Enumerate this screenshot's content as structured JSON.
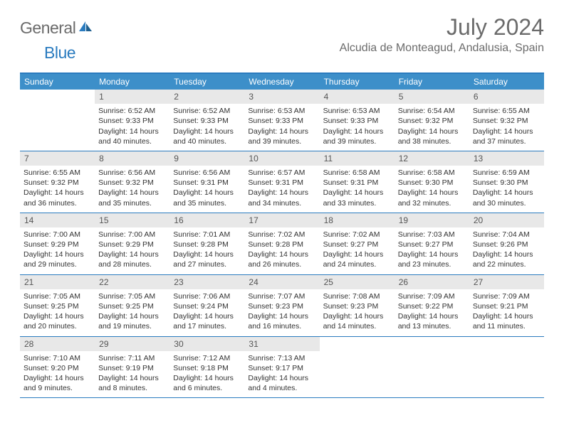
{
  "logo": {
    "text1": "General",
    "text2": "Blue"
  },
  "title": "July 2024",
  "location": "Alcudia de Monteagud, Andalusia, Spain",
  "colors": {
    "header_bg": "#3d8fc9",
    "border": "#2a7bbf",
    "daynum_bg": "#e8e8e8",
    "text": "#333333",
    "muted": "#6b6b6b"
  },
  "dow": [
    "Sunday",
    "Monday",
    "Tuesday",
    "Wednesday",
    "Thursday",
    "Friday",
    "Saturday"
  ],
  "weeks": [
    [
      {
        "n": "",
        "empty": true
      },
      {
        "n": "1",
        "sr": "Sunrise: 6:52 AM",
        "ss": "Sunset: 9:33 PM",
        "dl": "Daylight: 14 hours and 40 minutes."
      },
      {
        "n": "2",
        "sr": "Sunrise: 6:52 AM",
        "ss": "Sunset: 9:33 PM",
        "dl": "Daylight: 14 hours and 40 minutes."
      },
      {
        "n": "3",
        "sr": "Sunrise: 6:53 AM",
        "ss": "Sunset: 9:33 PM",
        "dl": "Daylight: 14 hours and 39 minutes."
      },
      {
        "n": "4",
        "sr": "Sunrise: 6:53 AM",
        "ss": "Sunset: 9:33 PM",
        "dl": "Daylight: 14 hours and 39 minutes."
      },
      {
        "n": "5",
        "sr": "Sunrise: 6:54 AM",
        "ss": "Sunset: 9:32 PM",
        "dl": "Daylight: 14 hours and 38 minutes."
      },
      {
        "n": "6",
        "sr": "Sunrise: 6:55 AM",
        "ss": "Sunset: 9:32 PM",
        "dl": "Daylight: 14 hours and 37 minutes."
      }
    ],
    [
      {
        "n": "7",
        "sr": "Sunrise: 6:55 AM",
        "ss": "Sunset: 9:32 PM",
        "dl": "Daylight: 14 hours and 36 minutes."
      },
      {
        "n": "8",
        "sr": "Sunrise: 6:56 AM",
        "ss": "Sunset: 9:32 PM",
        "dl": "Daylight: 14 hours and 35 minutes."
      },
      {
        "n": "9",
        "sr": "Sunrise: 6:56 AM",
        "ss": "Sunset: 9:31 PM",
        "dl": "Daylight: 14 hours and 35 minutes."
      },
      {
        "n": "10",
        "sr": "Sunrise: 6:57 AM",
        "ss": "Sunset: 9:31 PM",
        "dl": "Daylight: 14 hours and 34 minutes."
      },
      {
        "n": "11",
        "sr": "Sunrise: 6:58 AM",
        "ss": "Sunset: 9:31 PM",
        "dl": "Daylight: 14 hours and 33 minutes."
      },
      {
        "n": "12",
        "sr": "Sunrise: 6:58 AM",
        "ss": "Sunset: 9:30 PM",
        "dl": "Daylight: 14 hours and 32 minutes."
      },
      {
        "n": "13",
        "sr": "Sunrise: 6:59 AM",
        "ss": "Sunset: 9:30 PM",
        "dl": "Daylight: 14 hours and 30 minutes."
      }
    ],
    [
      {
        "n": "14",
        "sr": "Sunrise: 7:00 AM",
        "ss": "Sunset: 9:29 PM",
        "dl": "Daylight: 14 hours and 29 minutes."
      },
      {
        "n": "15",
        "sr": "Sunrise: 7:00 AM",
        "ss": "Sunset: 9:29 PM",
        "dl": "Daylight: 14 hours and 28 minutes."
      },
      {
        "n": "16",
        "sr": "Sunrise: 7:01 AM",
        "ss": "Sunset: 9:28 PM",
        "dl": "Daylight: 14 hours and 27 minutes."
      },
      {
        "n": "17",
        "sr": "Sunrise: 7:02 AM",
        "ss": "Sunset: 9:28 PM",
        "dl": "Daylight: 14 hours and 26 minutes."
      },
      {
        "n": "18",
        "sr": "Sunrise: 7:02 AM",
        "ss": "Sunset: 9:27 PM",
        "dl": "Daylight: 14 hours and 24 minutes."
      },
      {
        "n": "19",
        "sr": "Sunrise: 7:03 AM",
        "ss": "Sunset: 9:27 PM",
        "dl": "Daylight: 14 hours and 23 minutes."
      },
      {
        "n": "20",
        "sr": "Sunrise: 7:04 AM",
        "ss": "Sunset: 9:26 PM",
        "dl": "Daylight: 14 hours and 22 minutes."
      }
    ],
    [
      {
        "n": "21",
        "sr": "Sunrise: 7:05 AM",
        "ss": "Sunset: 9:25 PM",
        "dl": "Daylight: 14 hours and 20 minutes."
      },
      {
        "n": "22",
        "sr": "Sunrise: 7:05 AM",
        "ss": "Sunset: 9:25 PM",
        "dl": "Daylight: 14 hours and 19 minutes."
      },
      {
        "n": "23",
        "sr": "Sunrise: 7:06 AM",
        "ss": "Sunset: 9:24 PM",
        "dl": "Daylight: 14 hours and 17 minutes."
      },
      {
        "n": "24",
        "sr": "Sunrise: 7:07 AM",
        "ss": "Sunset: 9:23 PM",
        "dl": "Daylight: 14 hours and 16 minutes."
      },
      {
        "n": "25",
        "sr": "Sunrise: 7:08 AM",
        "ss": "Sunset: 9:23 PM",
        "dl": "Daylight: 14 hours and 14 minutes."
      },
      {
        "n": "26",
        "sr": "Sunrise: 7:09 AM",
        "ss": "Sunset: 9:22 PM",
        "dl": "Daylight: 14 hours and 13 minutes."
      },
      {
        "n": "27",
        "sr": "Sunrise: 7:09 AM",
        "ss": "Sunset: 9:21 PM",
        "dl": "Daylight: 14 hours and 11 minutes."
      }
    ],
    [
      {
        "n": "28",
        "sr": "Sunrise: 7:10 AM",
        "ss": "Sunset: 9:20 PM",
        "dl": "Daylight: 14 hours and 9 minutes."
      },
      {
        "n": "29",
        "sr": "Sunrise: 7:11 AM",
        "ss": "Sunset: 9:19 PM",
        "dl": "Daylight: 14 hours and 8 minutes."
      },
      {
        "n": "30",
        "sr": "Sunrise: 7:12 AM",
        "ss": "Sunset: 9:18 PM",
        "dl": "Daylight: 14 hours and 6 minutes."
      },
      {
        "n": "31",
        "sr": "Sunrise: 7:13 AM",
        "ss": "Sunset: 9:17 PM",
        "dl": "Daylight: 14 hours and 4 minutes."
      },
      {
        "n": "",
        "empty": true
      },
      {
        "n": "",
        "empty": true
      },
      {
        "n": "",
        "empty": true
      }
    ]
  ]
}
